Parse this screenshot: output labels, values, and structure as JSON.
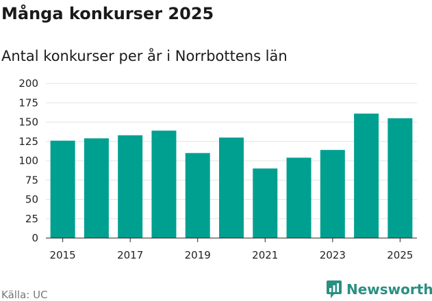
{
  "brand": {
    "name": "Newsworthy",
    "icon": "newsworthy-logo-icon"
  },
  "source": "Källa: UC",
  "colors": {
    "bar": "#00a091",
    "grid": "#e3e3e3",
    "axis": "#222222",
    "brand": "#2a8f82"
  },
  "chart_data": {
    "type": "bar",
    "title": "Många konkurser 2025",
    "subtitle": "Antal konkurser per år i Norrbottens län",
    "xlabel": "",
    "ylabel": "",
    "categories": [
      "2015",
      "2016",
      "2017",
      "2018",
      "2019",
      "2020",
      "2021",
      "2022",
      "2023",
      "2024",
      "2025"
    ],
    "values": [
      126,
      129,
      133,
      139,
      110,
      130,
      90,
      104,
      114,
      161,
      155
    ],
    "x_tick_labels": [
      "2015",
      "2017",
      "2019",
      "2021",
      "2023",
      "2025"
    ],
    "y_ticks": [
      0,
      25,
      50,
      75,
      100,
      125,
      150,
      175,
      200
    ],
    "ylim": [
      0,
      200
    ],
    "grid": true,
    "legend": "none"
  }
}
